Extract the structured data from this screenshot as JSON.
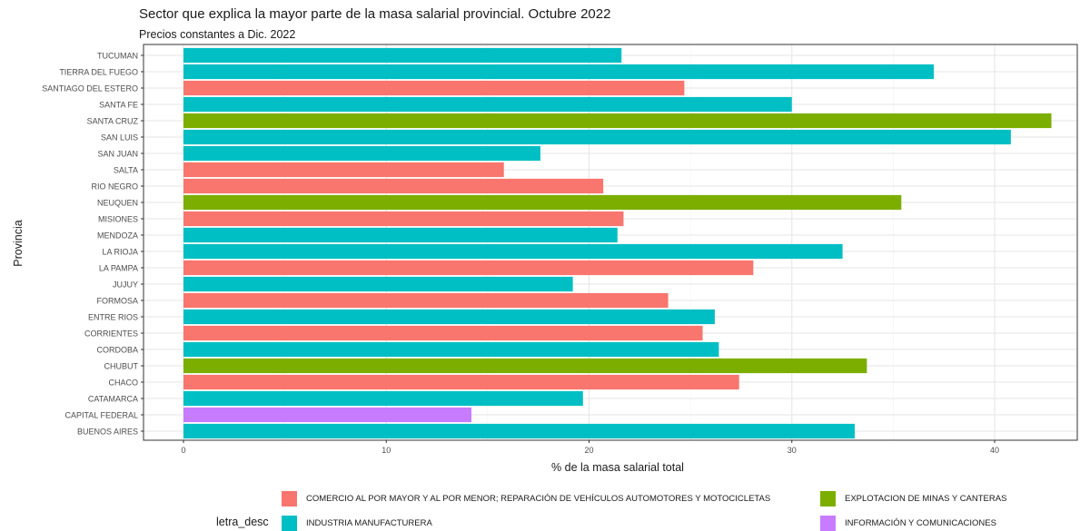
{
  "title": "Sector que explica la mayor parte de la masa salarial provincial. Octubre 2022",
  "subtitle": "Precios constantes a Dic. 2022",
  "legend": {
    "title": "letra_desc",
    "items": [
      {
        "label": "COMERCIO AL POR MAYOR Y AL POR MENOR; REPARACIÓN DE VEHÍCULOS AUTOMOTORES Y MOTOCICLETAS",
        "color": "#F8766D"
      },
      {
        "label": "EXPLOTACION DE MINAS Y CANTERAS",
        "color": "#7CAE00"
      },
      {
        "label": "INDUSTRIA MANUFACTURERA",
        "color": "#00BFC4"
      },
      {
        "label": "INFORMACIÓN Y COMUNICACIONES",
        "color": "#C77CFF"
      }
    ]
  },
  "chart_data": {
    "type": "bar",
    "orientation": "horizontal",
    "title": "Sector que explica la mayor parte de la masa salarial provincial. Octubre 2022",
    "subtitle": "Precios constantes a Dic. 2022",
    "xlabel": "% de la masa salarial total",
    "ylabel": "Provincia",
    "xlim": [
      0,
      44
    ],
    "xticks": [
      0,
      10,
      20,
      30,
      40
    ],
    "grid": true,
    "legend_position": "bottom",
    "categories": [
      "TUCUMAN",
      "TIERRA DEL FUEGO",
      "SANTIAGO DEL ESTERO",
      "SANTA FE",
      "SANTA CRUZ",
      "SAN LUIS",
      "SAN JUAN",
      "SALTA",
      "RIO NEGRO",
      "NEUQUEN",
      "MISIONES",
      "MENDOZA",
      "LA RIOJA",
      "LA PAMPA",
      "JUJUY",
      "FORMOSA",
      "ENTRE RIOS",
      "CORRIENTES",
      "CORDOBA",
      "CHUBUT",
      "CHACO",
      "CATAMARCA",
      "CAPITAL FEDERAL",
      "BUENOS AIRES"
    ],
    "values": [
      21.6,
      37.0,
      24.7,
      30.0,
      42.8,
      40.8,
      17.6,
      15.8,
      20.7,
      35.4,
      21.7,
      21.4,
      32.5,
      28.1,
      19.2,
      23.9,
      26.2,
      25.6,
      26.4,
      33.7,
      27.4,
      19.7,
      14.2,
      33.1
    ],
    "sector": [
      "INDUSTRIA MANUFACTURERA",
      "INDUSTRIA MANUFACTURERA",
      "COMERCIO AL POR MAYOR Y AL POR MENOR; REPARACIÓN DE VEHÍCULOS AUTOMOTORES Y MOTOCICLETAS",
      "INDUSTRIA MANUFACTURERA",
      "EXPLOTACION DE MINAS Y CANTERAS",
      "INDUSTRIA MANUFACTURERA",
      "INDUSTRIA MANUFACTURERA",
      "COMERCIO AL POR MAYOR Y AL POR MENOR; REPARACIÓN DE VEHÍCULOS AUTOMOTORES Y MOTOCICLETAS",
      "COMERCIO AL POR MAYOR Y AL POR MENOR; REPARACIÓN DE VEHÍCULOS AUTOMOTORES Y MOTOCICLETAS",
      "EXPLOTACION DE MINAS Y CANTERAS",
      "COMERCIO AL POR MAYOR Y AL POR MENOR; REPARACIÓN DE VEHÍCULOS AUTOMOTORES Y MOTOCICLETAS",
      "INDUSTRIA MANUFACTURERA",
      "INDUSTRIA MANUFACTURERA",
      "COMERCIO AL POR MAYOR Y AL POR MENOR; REPARACIÓN DE VEHÍCULOS AUTOMOTORES Y MOTOCICLETAS",
      "INDUSTRIA MANUFACTURERA",
      "COMERCIO AL POR MAYOR Y AL POR MENOR; REPARACIÓN DE VEHÍCULOS AUTOMOTORES Y MOTOCICLETAS",
      "INDUSTRIA MANUFACTURERA",
      "COMERCIO AL POR MAYOR Y AL POR MENOR; REPARACIÓN DE VEHÍCULOS AUTOMOTORES Y MOTOCICLETAS",
      "INDUSTRIA MANUFACTURERA",
      "EXPLOTACION DE MINAS Y CANTERAS",
      "COMERCIO AL POR MAYOR Y AL POR MENOR; REPARACIÓN DE VEHÍCULOS AUTOMOTORES Y MOTOCICLETAS",
      "INDUSTRIA MANUFACTURERA",
      "INFORMACIÓN Y COMUNICACIONES",
      "INDUSTRIA MANUFACTURERA"
    ]
  }
}
